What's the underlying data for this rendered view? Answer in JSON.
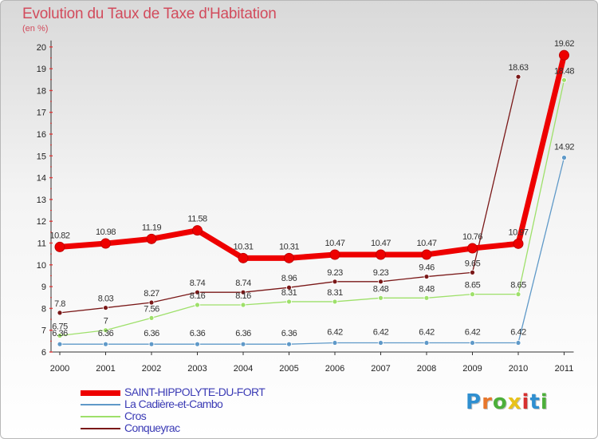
{
  "chart_data": {
    "type": "line",
    "title": "Evolution du Taux de Taxe d'Habitation",
    "subtitle": "(en %)",
    "x": [
      "2000",
      "2001",
      "2002",
      "2003",
      "2004",
      "2005",
      "2006",
      "2007",
      "2008",
      "2009",
      "2010",
      "2011"
    ],
    "ylim": [
      6,
      20
    ],
    "yticks": [
      6,
      7,
      8,
      9,
      10,
      11,
      12,
      13,
      14,
      15,
      16,
      17,
      18,
      19,
      20
    ],
    "grid": false,
    "legend_position": "bottom-left",
    "series": [
      {
        "name": "SAINT-HIPPOLYTE-DU-FORT",
        "color": "#ee0000",
        "values": [
          10.82,
          10.98,
          11.19,
          11.58,
          10.31,
          10.31,
          10.47,
          10.47,
          10.47,
          10.76,
          10.97,
          19.62
        ],
        "labels": [
          "10.82",
          "10.98",
          "11.19",
          "11.58",
          "10.31",
          "10.31",
          "10.47",
          "10.47",
          "10.47",
          "10.76",
          "10.97",
          "19.62"
        ]
      },
      {
        "name": "La Cadière-et-Cambo",
        "color": "#5f99c8",
        "values": [
          6.36,
          6.36,
          6.36,
          6.36,
          6.36,
          6.36,
          6.42,
          6.42,
          6.42,
          6.42,
          6.42,
          14.92
        ],
        "labels": [
          "6.36",
          "6.36",
          "6.36",
          "6.36",
          "6.36",
          "6.36",
          "6.42",
          "6.42",
          "6.42",
          "6.42",
          "6.42",
          "14.92"
        ]
      },
      {
        "name": "Cros",
        "color": "#9ee06a",
        "values": [
          6.75,
          7.0,
          7.56,
          8.16,
          8.16,
          8.31,
          8.31,
          8.48,
          8.48,
          8.65,
          8.65,
          18.48
        ],
        "labels": [
          "6.75",
          "7",
          "7.56",
          "8.16",
          "8.16",
          "8.31",
          "8.31",
          "8.48",
          "8.48",
          "8.65",
          "8.65",
          "18.48"
        ]
      },
      {
        "name": "Conqueyrac",
        "color": "#7a1818",
        "values": [
          7.8,
          8.03,
          8.27,
          8.74,
          8.74,
          8.96,
          9.23,
          9.23,
          9.46,
          9.65,
          18.63,
          null
        ],
        "labels": [
          "7.8",
          "8.03",
          "8.27",
          "8.74",
          "8.74",
          "8.96",
          "9.23",
          "9.23",
          "9.46",
          "9.65",
          "18.63",
          ""
        ]
      }
    ]
  },
  "brand": {
    "text": "Proxiti",
    "letters": [
      "P",
      "r",
      "o",
      "x",
      "i",
      "t",
      "i"
    ],
    "letter_colors": [
      "#2f8fd0",
      "#e8762b",
      "#4caf3a",
      "#e8c21b",
      "#d7302f",
      "#2f8fd0",
      "#4caf3a"
    ]
  }
}
